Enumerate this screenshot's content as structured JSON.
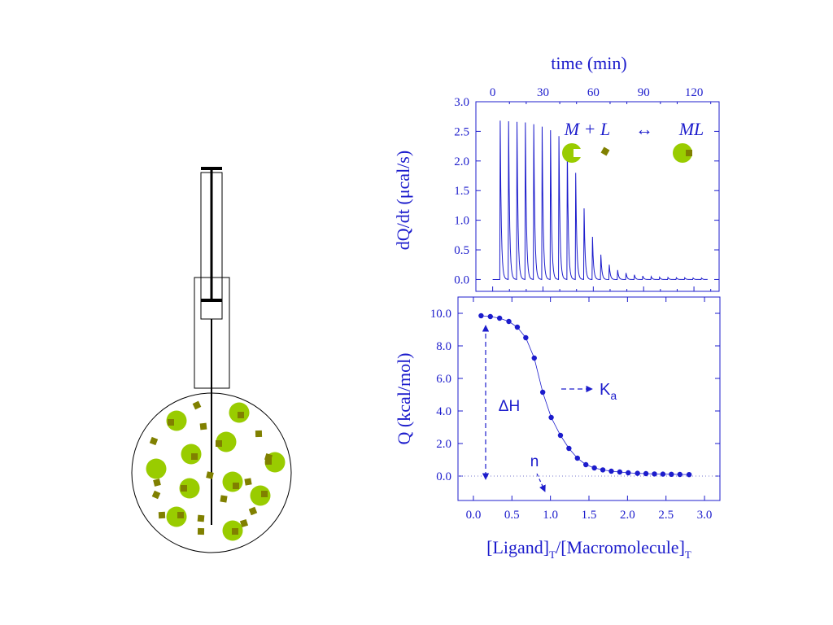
{
  "colors": {
    "ink": "#1c1ccc",
    "macromolecule": "#99cc00",
    "ligand": "#808000",
    "apparatus": "#000000"
  },
  "apparatus": {
    "icon": "itc-cell-syringe-icon"
  },
  "chart_data": [
    {
      "type": "line",
      "top_axis_label": "time (min)",
      "ylabel": "dQ/dt (μcal/s)",
      "xlim": [
        -10,
        135
      ],
      "ylim": [
        -0.2,
        3.0
      ],
      "x_ticks": [
        "0",
        "30",
        "60",
        "90",
        "120"
      ],
      "x_tick_values": [
        0,
        30,
        60,
        90,
        120
      ],
      "y_ticks": [
        "0.0",
        "0.5",
        "1.0",
        "1.5",
        "2.0",
        "2.5",
        "3.0"
      ],
      "y_tick_values": [
        0,
        0.5,
        1.0,
        1.5,
        2.0,
        2.5,
        3.0
      ],
      "baseline": 0.0,
      "injection_start_min": 0,
      "injection_end_min": 128,
      "injection_times_min": [
        4.5,
        9.5,
        14.5,
        19.5,
        24.5,
        29.5,
        34.5,
        39.5,
        44.5,
        49.5,
        54.5,
        59.5,
        64.5,
        69.5,
        74.5,
        79.5,
        84.5,
        89.5,
        94.5,
        99.5,
        104.5,
        109.5,
        114.5,
        119.5,
        124.5
      ],
      "peak_heights": [
        2.68,
        2.67,
        2.66,
        2.65,
        2.62,
        2.58,
        2.52,
        2.42,
        2.22,
        1.8,
        1.2,
        0.72,
        0.42,
        0.25,
        0.16,
        0.11,
        0.08,
        0.06,
        0.05,
        0.04,
        0.035,
        0.03,
        0.03,
        0.025,
        0.025
      ],
      "annotation": {
        "equation_left": "M + L",
        "equation_arrow": "↔",
        "equation_right": "ML"
      }
    },
    {
      "type": "scatter",
      "xlabel_main": "[Ligand]",
      "xlabel_sub1": "T",
      "xlabel_mid": "/[Macromolecule]",
      "xlabel_sub2": "T",
      "ylabel": "Q (kcal/mol)",
      "xlim": [
        -0.2,
        3.2
      ],
      "ylim": [
        -1.5,
        11.0
      ],
      "x_ticks": [
        "0.0",
        "0.5",
        "1.0",
        "1.5",
        "2.0",
        "2.5",
        "3.0"
      ],
      "x_tick_values": [
        0,
        0.5,
        1.0,
        1.5,
        2.0,
        2.5,
        3.0
      ],
      "y_ticks": [
        "0.0",
        "2.0",
        "4.0",
        "6.0",
        "8.0",
        "10.0"
      ],
      "y_tick_values": [
        0,
        2,
        4,
        6,
        8,
        10
      ],
      "points": {
        "x": [
          0.1,
          0.22,
          0.34,
          0.46,
          0.57,
          0.68,
          0.79,
          0.9,
          1.01,
          1.13,
          1.24,
          1.35,
          1.46,
          1.57,
          1.68,
          1.79,
          1.9,
          2.01,
          2.13,
          2.24,
          2.35,
          2.46,
          2.57,
          2.68,
          2.8
        ],
        "y": [
          9.85,
          9.8,
          9.7,
          9.5,
          9.15,
          8.5,
          7.25,
          5.15,
          3.6,
          2.5,
          1.7,
          1.1,
          0.7,
          0.5,
          0.38,
          0.3,
          0.25,
          0.2,
          0.17,
          0.15,
          0.13,
          0.12,
          0.11,
          0.1,
          0.09
        ]
      },
      "annotations": {
        "delta_h": "ΔH",
        "ka_main": "K",
        "ka_sub": "a",
        "n": "n"
      }
    }
  ]
}
